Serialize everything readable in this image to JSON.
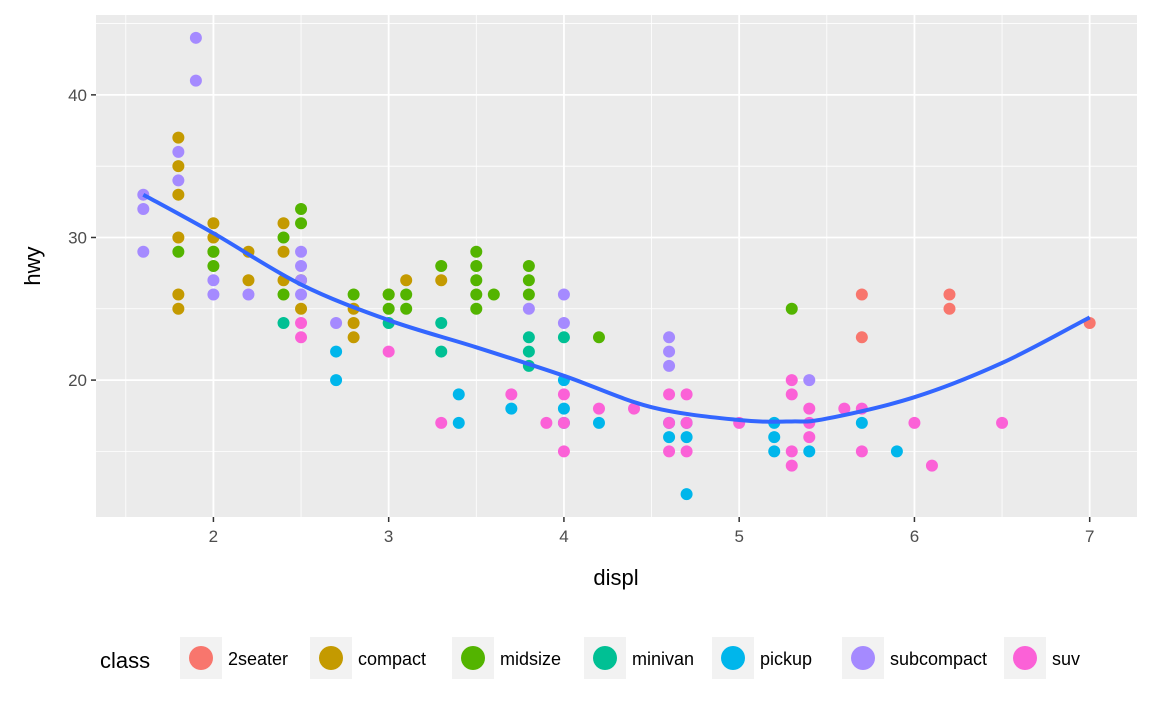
{
  "chart_data": {
    "type": "scatter",
    "xlabel": "displ",
    "ylabel": "hwy",
    "xlim": [
      1.33,
      7.27
    ],
    "ylim": [
      10.4,
      45.6
    ],
    "xticks": [
      2,
      3,
      4,
      5,
      6,
      7
    ],
    "yticks": [
      20,
      30,
      40
    ],
    "grid": true,
    "legend": {
      "title": "class",
      "placement": "bottom"
    },
    "classes": [
      {
        "name": "2seater",
        "color": "#F8766D",
        "points": [
          [
            5.7,
            26
          ],
          [
            5.7,
            23
          ],
          [
            6.2,
            26
          ],
          [
            6.2,
            25
          ],
          [
            7.0,
            24
          ]
        ]
      },
      {
        "name": "compact",
        "color": "#C49A00",
        "points": [
          [
            1.8,
            37
          ],
          [
            1.8,
            35
          ],
          [
            1.8,
            33
          ],
          [
            1.8,
            30
          ],
          [
            1.8,
            26
          ],
          [
            1.8,
            25
          ],
          [
            2.0,
            31
          ],
          [
            2.0,
            30
          ],
          [
            2.0,
            29
          ],
          [
            2.2,
            29
          ],
          [
            2.2,
            27
          ],
          [
            2.4,
            31
          ],
          [
            2.4,
            29
          ],
          [
            2.4,
            27
          ],
          [
            2.5,
            27
          ],
          [
            2.5,
            25
          ],
          [
            2.8,
            25
          ],
          [
            2.8,
            24
          ],
          [
            2.8,
            23
          ],
          [
            3.0,
            26
          ],
          [
            3.1,
            27
          ],
          [
            3.3,
            27
          ]
        ]
      },
      {
        "name": "midsize",
        "color": "#53B400",
        "points": [
          [
            1.8,
            29
          ],
          [
            2.0,
            29
          ],
          [
            2.0,
            28
          ],
          [
            2.4,
            30
          ],
          [
            2.4,
            26
          ],
          [
            2.5,
            32
          ],
          [
            2.5,
            31
          ],
          [
            2.8,
            26
          ],
          [
            3.0,
            26
          ],
          [
            3.0,
            25
          ],
          [
            3.1,
            26
          ],
          [
            3.1,
            25
          ],
          [
            3.3,
            28
          ],
          [
            3.5,
            29
          ],
          [
            3.5,
            28
          ],
          [
            3.5,
            27
          ],
          [
            3.5,
            26
          ],
          [
            3.5,
            25
          ],
          [
            3.6,
            26
          ],
          [
            3.8,
            28
          ],
          [
            3.8,
            27
          ],
          [
            3.8,
            26
          ],
          [
            4.2,
            23
          ],
          [
            5.3,
            25
          ]
        ]
      },
      {
        "name": "minivan",
        "color": "#00C094",
        "points": [
          [
            2.4,
            24
          ],
          [
            3.0,
            24
          ],
          [
            3.3,
            24
          ],
          [
            3.3,
            22
          ],
          [
            3.8,
            23
          ],
          [
            3.8,
            22
          ],
          [
            3.8,
            21
          ],
          [
            4.0,
            23
          ]
        ]
      },
      {
        "name": "pickup",
        "color": "#00B6EB",
        "points": [
          [
            2.7,
            22
          ],
          [
            2.7,
            20
          ],
          [
            3.4,
            19
          ],
          [
            3.4,
            17
          ],
          [
            3.7,
            18
          ],
          [
            4.0,
            20
          ],
          [
            4.0,
            18
          ],
          [
            4.0,
            17
          ],
          [
            4.2,
            17
          ],
          [
            4.6,
            17
          ],
          [
            4.6,
            16
          ],
          [
            4.7,
            17
          ],
          [
            4.7,
            16
          ],
          [
            4.7,
            12
          ],
          [
            5.2,
            17
          ],
          [
            5.2,
            16
          ],
          [
            5.2,
            15
          ],
          [
            5.4,
            15
          ],
          [
            5.7,
            17
          ],
          [
            5.9,
            15
          ]
        ]
      },
      {
        "name": "subcompact",
        "color": "#A58AFF",
        "points": [
          [
            1.6,
            33
          ],
          [
            1.6,
            32
          ],
          [
            1.6,
            29
          ],
          [
            1.9,
            44
          ],
          [
            1.9,
            41
          ],
          [
            1.8,
            36
          ],
          [
            1.8,
            34
          ],
          [
            2.0,
            27
          ],
          [
            2.0,
            26
          ],
          [
            2.2,
            26
          ],
          [
            2.5,
            29
          ],
          [
            2.5,
            28
          ],
          [
            2.5,
            27
          ],
          [
            2.5,
            26
          ],
          [
            2.7,
            24
          ],
          [
            3.8,
            25
          ],
          [
            4.0,
            26
          ],
          [
            4.0,
            24
          ],
          [
            4.6,
            23
          ],
          [
            4.6,
            22
          ],
          [
            4.6,
            21
          ],
          [
            5.4,
            20
          ]
        ]
      },
      {
        "name": "suv",
        "color": "#FB61D7",
        "points": [
          [
            2.5,
            24
          ],
          [
            2.5,
            23
          ],
          [
            3.0,
            22
          ],
          [
            3.3,
            17
          ],
          [
            3.7,
            19
          ],
          [
            3.9,
            17
          ],
          [
            4.0,
            19
          ],
          [
            4.0,
            17
          ],
          [
            4.0,
            15
          ],
          [
            4.2,
            18
          ],
          [
            4.4,
            18
          ],
          [
            4.6,
            19
          ],
          [
            4.6,
            17
          ],
          [
            4.6,
            15
          ],
          [
            4.7,
            19
          ],
          [
            4.7,
            17
          ],
          [
            4.7,
            15
          ],
          [
            5.0,
            17
          ],
          [
            5.3,
            20
          ],
          [
            5.3,
            19
          ],
          [
            5.3,
            15
          ],
          [
            5.3,
            14
          ],
          [
            5.4,
            18
          ],
          [
            5.4,
            17
          ],
          [
            5.4,
            16
          ],
          [
            5.6,
            18
          ],
          [
            5.7,
            18
          ],
          [
            5.7,
            15
          ],
          [
            6.0,
            17
          ],
          [
            6.1,
            14
          ],
          [
            6.5,
            17
          ]
        ]
      }
    ],
    "smooth": {
      "color": "#3366FF",
      "points": [
        [
          1.6,
          33
        ],
        [
          2,
          30.3
        ],
        [
          2.5,
          26.7
        ],
        [
          3,
          24.2
        ],
        [
          3.5,
          22.3
        ],
        [
          4,
          20.3
        ],
        [
          4.5,
          18.1
        ],
        [
          5,
          17.2
        ],
        [
          5.3,
          17.1
        ],
        [
          5.5,
          17.3
        ],
        [
          6,
          18.8
        ],
        [
          6.5,
          21.2
        ],
        [
          7,
          24.4
        ]
      ]
    }
  }
}
